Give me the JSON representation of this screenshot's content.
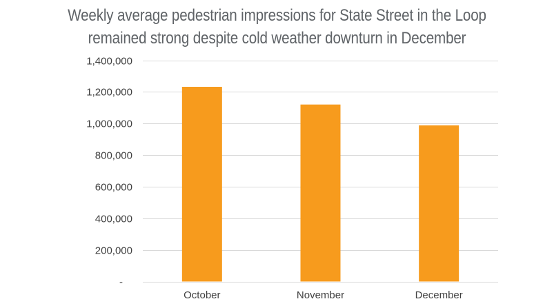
{
  "chart_data": {
    "type": "bar",
    "title": "Weekly average pedestrian impressions for State Street in the Loop remained strong despite cold weather downturn in December",
    "title_lines": [
      "Weekly average pedestrian impressions for State Street in the Loop",
      "remained strong despite cold weather downturn in December"
    ],
    "categories": [
      "October",
      "November",
      "December"
    ],
    "values": [
      1232000,
      1120000,
      988000
    ],
    "ylim": [
      0,
      1400000
    ],
    "yticks": [
      0,
      200000,
      400000,
      600000,
      800000,
      1000000,
      1200000,
      1400000
    ],
    "ytick_labels": [
      "-",
      "200,000",
      "400,000",
      "600,000",
      "800,000",
      "1,000,000",
      "1,200,000",
      "1,400,000"
    ],
    "bar_color": "#F79B1D",
    "grid": true,
    "xlabel": "",
    "ylabel": ""
  }
}
